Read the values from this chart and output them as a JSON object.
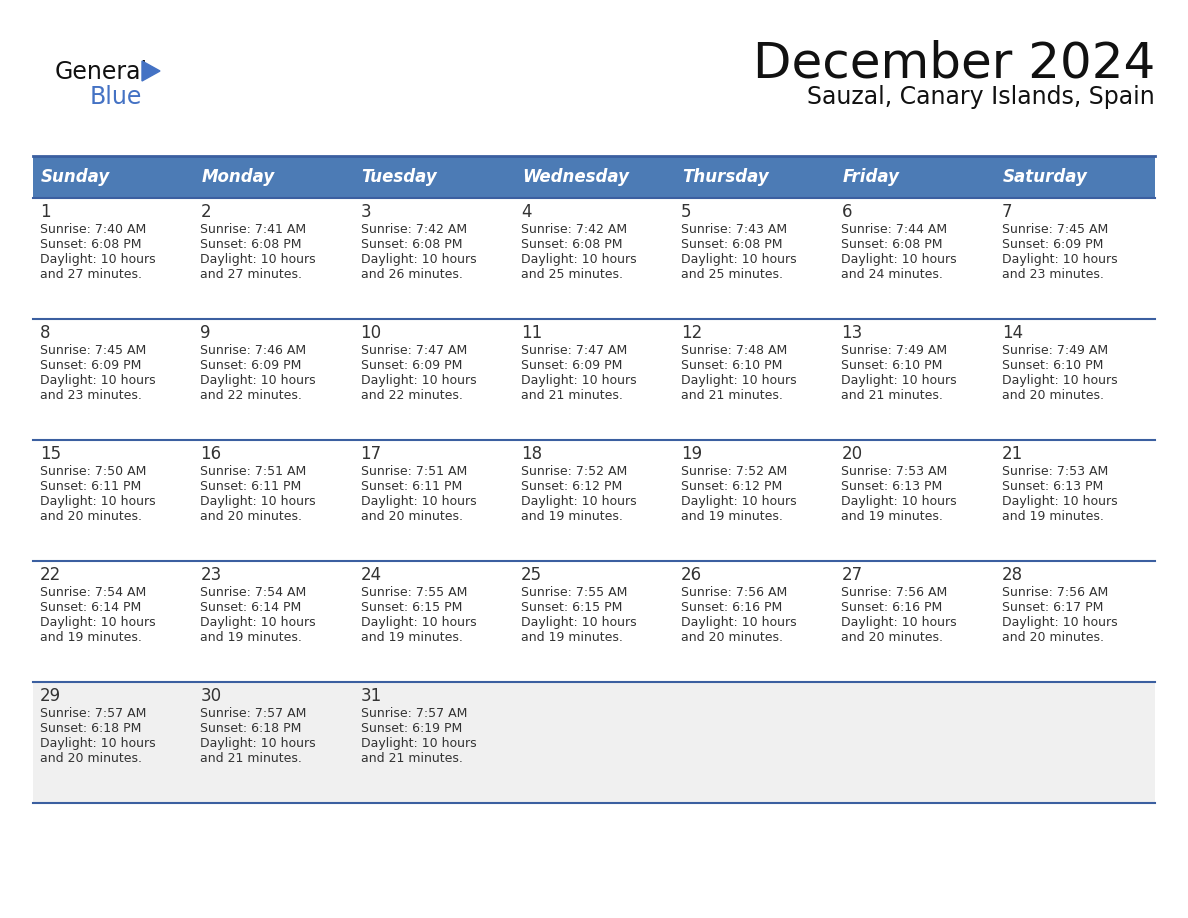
{
  "title": "December 2024",
  "subtitle": "Sauzal, Canary Islands, Spain",
  "days_of_week": [
    "Sunday",
    "Monday",
    "Tuesday",
    "Wednesday",
    "Thursday",
    "Friday",
    "Saturday"
  ],
  "header_bg": "#4C7BB5",
  "header_text": "#FFFFFF",
  "row_bg_white": "#FFFFFF",
  "row_bg_gray": "#F0F0F0",
  "border_color": "#3B5FA0",
  "text_color": "#333333",
  "day_num_color": "#333333",
  "calendar": [
    [
      {
        "day": 1,
        "sunrise": "7:40 AM",
        "sunset": "6:08 PM",
        "daylight_min": "27"
      },
      {
        "day": 2,
        "sunrise": "7:41 AM",
        "sunset": "6:08 PM",
        "daylight_min": "27"
      },
      {
        "day": 3,
        "sunrise": "7:42 AM",
        "sunset": "6:08 PM",
        "daylight_min": "26"
      },
      {
        "day": 4,
        "sunrise": "7:42 AM",
        "sunset": "6:08 PM",
        "daylight_min": "25"
      },
      {
        "day": 5,
        "sunrise": "7:43 AM",
        "sunset": "6:08 PM",
        "daylight_min": "25"
      },
      {
        "day": 6,
        "sunrise": "7:44 AM",
        "sunset": "6:08 PM",
        "daylight_min": "24"
      },
      {
        "day": 7,
        "sunrise": "7:45 AM",
        "sunset": "6:09 PM",
        "daylight_min": "23"
      }
    ],
    [
      {
        "day": 8,
        "sunrise": "7:45 AM",
        "sunset": "6:09 PM",
        "daylight_min": "23"
      },
      {
        "day": 9,
        "sunrise": "7:46 AM",
        "sunset": "6:09 PM",
        "daylight_min": "22"
      },
      {
        "day": 10,
        "sunrise": "7:47 AM",
        "sunset": "6:09 PM",
        "daylight_min": "22"
      },
      {
        "day": 11,
        "sunrise": "7:47 AM",
        "sunset": "6:09 PM",
        "daylight_min": "21"
      },
      {
        "day": 12,
        "sunrise": "7:48 AM",
        "sunset": "6:10 PM",
        "daylight_min": "21"
      },
      {
        "day": 13,
        "sunrise": "7:49 AM",
        "sunset": "6:10 PM",
        "daylight_min": "21"
      },
      {
        "day": 14,
        "sunrise": "7:49 AM",
        "sunset": "6:10 PM",
        "daylight_min": "20"
      }
    ],
    [
      {
        "day": 15,
        "sunrise": "7:50 AM",
        "sunset": "6:11 PM",
        "daylight_min": "20"
      },
      {
        "day": 16,
        "sunrise": "7:51 AM",
        "sunset": "6:11 PM",
        "daylight_min": "20"
      },
      {
        "day": 17,
        "sunrise": "7:51 AM",
        "sunset": "6:11 PM",
        "daylight_min": "20"
      },
      {
        "day": 18,
        "sunrise": "7:52 AM",
        "sunset": "6:12 PM",
        "daylight_min": "19"
      },
      {
        "day": 19,
        "sunrise": "7:52 AM",
        "sunset": "6:12 PM",
        "daylight_min": "19"
      },
      {
        "day": 20,
        "sunrise": "7:53 AM",
        "sunset": "6:13 PM",
        "daylight_min": "19"
      },
      {
        "day": 21,
        "sunrise": "7:53 AM",
        "sunset": "6:13 PM",
        "daylight_min": "19"
      }
    ],
    [
      {
        "day": 22,
        "sunrise": "7:54 AM",
        "sunset": "6:14 PM",
        "daylight_min": "19"
      },
      {
        "day": 23,
        "sunrise": "7:54 AM",
        "sunset": "6:14 PM",
        "daylight_min": "19"
      },
      {
        "day": 24,
        "sunrise": "7:55 AM",
        "sunset": "6:15 PM",
        "daylight_min": "19"
      },
      {
        "day": 25,
        "sunrise": "7:55 AM",
        "sunset": "6:15 PM",
        "daylight_min": "19"
      },
      {
        "day": 26,
        "sunrise": "7:56 AM",
        "sunset": "6:16 PM",
        "daylight_min": "20"
      },
      {
        "day": 27,
        "sunrise": "7:56 AM",
        "sunset": "6:16 PM",
        "daylight_min": "20"
      },
      {
        "day": 28,
        "sunrise": "7:56 AM",
        "sunset": "6:17 PM",
        "daylight_min": "20"
      }
    ],
    [
      {
        "day": 29,
        "sunrise": "7:57 AM",
        "sunset": "6:18 PM",
        "daylight_min": "20"
      },
      {
        "day": 30,
        "sunrise": "7:57 AM",
        "sunset": "6:18 PM",
        "daylight_min": "21"
      },
      {
        "day": 31,
        "sunrise": "7:57 AM",
        "sunset": "6:19 PM",
        "daylight_min": "21"
      },
      null,
      null,
      null,
      null
    ]
  ],
  "logo_triangle_color": "#4472C4"
}
